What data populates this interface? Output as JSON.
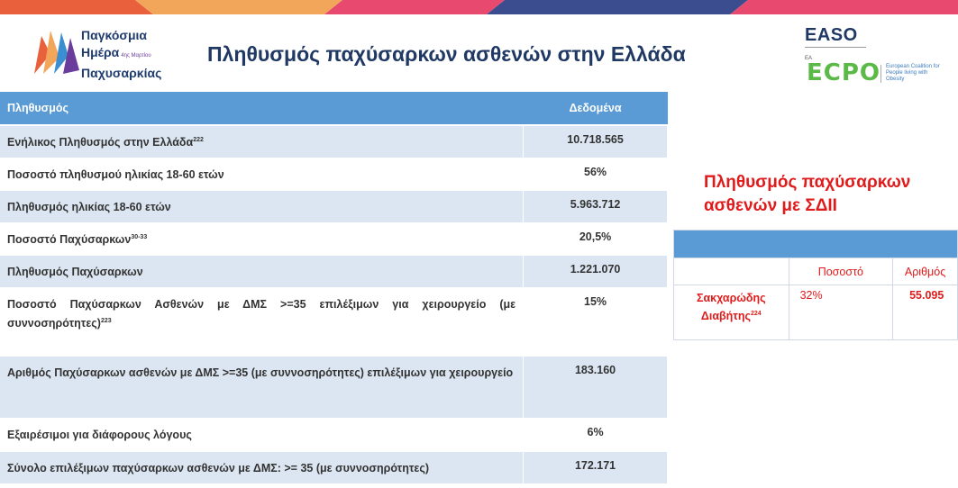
{
  "brand": {
    "logo_line1": "Παγκόσμια",
    "logo_line2": "Ημέρα",
    "logo_date": "4ης Μαρτίου",
    "logo_line3": "Παχυσαρκίας",
    "easo": "EASO",
    "ecpo_small": "ΕΑ",
    "ecpo": "ECPO",
    "ecpo_desc": "European Coalition for People living with Obesity"
  },
  "title": "Πληθυσμός παχύσαρκων ασθενών στην Ελλάδα",
  "main_table": {
    "headers": {
      "label": "Πληθυσμός",
      "value": "Δεδομένα"
    },
    "rows": [
      {
        "label": "Ενήλικος Πληθυσμός στην Ελλάδα",
        "ref": "222",
        "value": "10.718.565"
      },
      {
        "label": "Ποσοστό πληθυσμού ηλικίας 18-60 ετών",
        "ref": "",
        "value": "56%"
      },
      {
        "label": "Πληθυσμός ηλικίας 18-60 ετών",
        "ref": "",
        "value": "5.963.712"
      },
      {
        "label": "Ποσοστό Παχύσαρκων",
        "ref": "30-33",
        "value": "20,5%"
      },
      {
        "label": "Πληθυσμός Παχύσαρκων",
        "ref": "",
        "value": "1.221.070"
      },
      {
        "label": "Ποσοστό Παχύσαρκων Ασθενών με ΔΜΣ >=35 επιλέξιμων για χειρουργείο  (με συννοσηρότητες)",
        "ref": "223",
        "value": "15%"
      },
      {
        "label": "Αριθμός Παχύσαρκων ασθενών με ΔΜΣ >=35 (με συννοσηρότητες) επιλέξιμων για χειρουργείο",
        "ref": "",
        "value": "183.160"
      },
      {
        "label": "Εξαιρέσιμοι για διάφορους λόγους",
        "ref": "",
        "value": "6%"
      },
      {
        "label": "Σύνολο επιλέξιμων παχύσαρκων ασθενών με ΔΜΣ: >= 35 (με συννοσηρότητες)",
        "ref": "",
        "value": "172.171"
      }
    ]
  },
  "side": {
    "title": "Πληθυσμός παχύσαρκων ασθενών με ΣΔΙΙ",
    "col_pct": "Ποσοστό",
    "col_num": "Αριθμός",
    "row_label": "Σακχαρώδης Διαβήτης",
    "row_ref": "224",
    "row_pct": "32%",
    "row_num": "55.095"
  },
  "colors": {
    "header_blue": "#5b9bd5",
    "row_shade": "#dce6f2",
    "title_navy": "#1f3864",
    "highlight_red": "#e01b1b"
  }
}
